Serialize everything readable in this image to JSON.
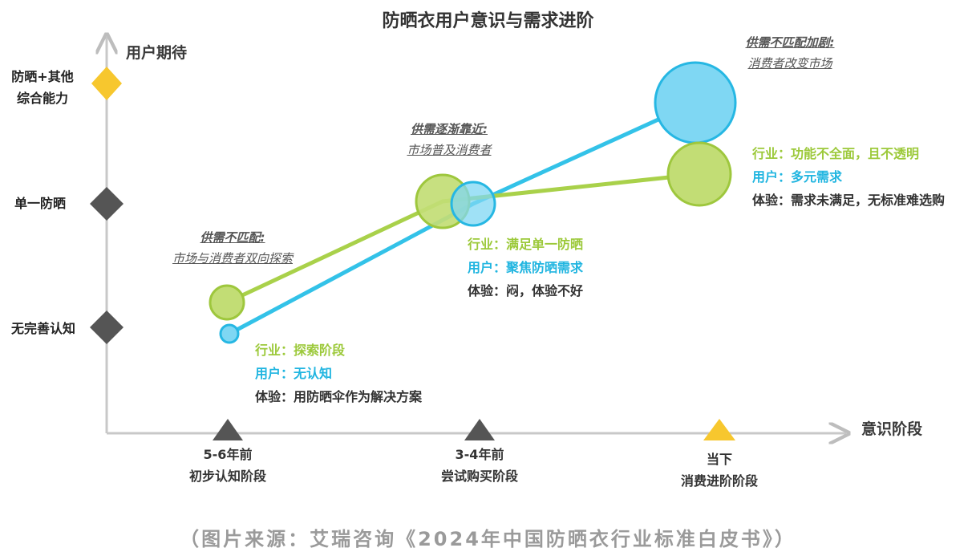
{
  "title": "防晒衣用户意识与需求进阶",
  "y_axis_title": "用户期待",
  "x_axis_title": "意识阶段",
  "y_levels": [
    {
      "line1": "防晒+其他",
      "line2": "综合能力",
      "marker": "diamond",
      "color": "#f7c72e"
    },
    {
      "line1": "单一防晒",
      "line2": "",
      "marker": "diamond",
      "color": "#555555"
    },
    {
      "line1": "无完善认知",
      "line2": "",
      "marker": "diamond",
      "color": "#555555"
    }
  ],
  "x_stages": [
    {
      "line1": "5-6年前",
      "line2": "初步认知阶段",
      "marker": "triangle",
      "color": "#555555"
    },
    {
      "line1": "3-4年前",
      "line2": "尝试购买阶段",
      "marker": "triangle",
      "color": "#555555"
    },
    {
      "line1": "当下",
      "line2": "消费进阶阶段",
      "marker": "triangle",
      "color": "#f7c72e"
    }
  ],
  "series": [
    {
      "role": "industry",
      "color": "#a9d14a"
    },
    {
      "role": "user",
      "color": "#4fc6ea"
    }
  ],
  "callouts": [
    {
      "line1": "供需不匹配:",
      "line2": "市场与消费者双向探索"
    },
    {
      "line1": "供需逐渐靠近:",
      "line2": "市场普及消费者"
    },
    {
      "line1": "供需不匹配加剧:",
      "line2": "消费者改变市场"
    }
  ],
  "info_blocks": [
    {
      "industry": "行业：探索阶段",
      "user": "用户：无认知",
      "experience": "体验：用防晒伞作为解决方案"
    },
    {
      "industry": "行业：满足单一防晒",
      "user": "用户：聚焦防晒需求",
      "experience": "体验：闷，体验不好"
    },
    {
      "industry": "行业：功能不全面，且不透明",
      "user": "用户：多元需求",
      "experience": "体验：需求未满足，无标准难选购"
    }
  ],
  "source": "（图片来源：艾瑞咨询《2024年中国防晒衣行业标准白皮书》）"
}
